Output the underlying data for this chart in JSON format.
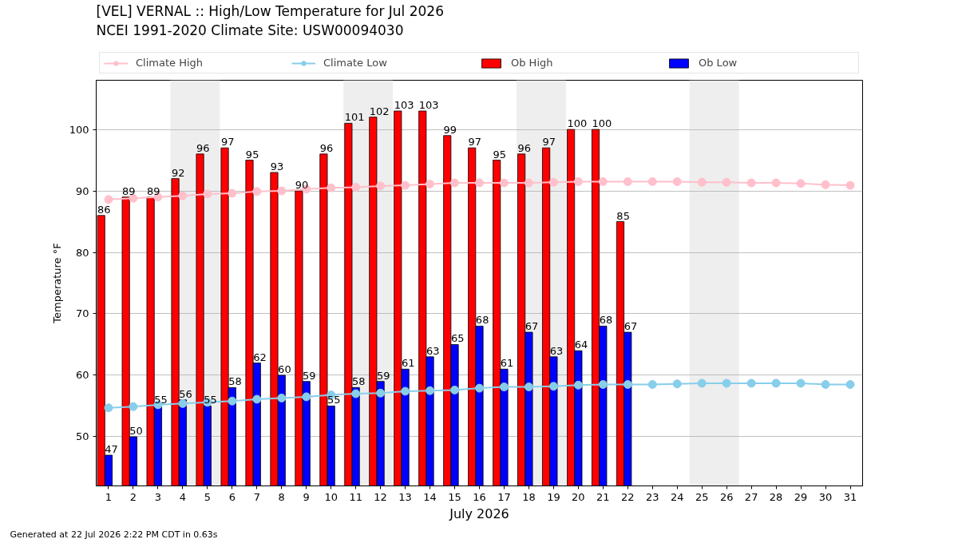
{
  "chart_data": {
    "type": "bar",
    "title": "[VEL] VERNAL :: High/Low Temperature for Jul 2026",
    "subtitle": "NCEI 1991-2020 Climate Site: USW00094030",
    "xlabel": "July 2026",
    "ylabel": "Temperature °F",
    "annotations": [
      "Generated at 22 Jul 2026 2:22 PM CDT in 0.63s"
    ],
    "x": [
      1,
      2,
      3,
      4,
      5,
      6,
      7,
      8,
      9,
      10,
      11,
      12,
      13,
      14,
      15,
      16,
      17,
      18,
      19,
      20,
      21,
      22,
      23,
      24,
      25,
      26,
      27,
      28,
      29,
      30,
      31
    ],
    "series": [
      {
        "name": "Climate High",
        "type": "line",
        "color": "#ffc0cb",
        "marker": "circle",
        "line_style": "solid",
        "values": [
          88.6,
          88.8,
          89.0,
          89.2,
          89.5,
          89.6,
          89.9,
          90.0,
          90.3,
          90.5,
          90.6,
          90.8,
          90.9,
          91.1,
          91.3,
          91.3,
          91.3,
          91.3,
          91.4,
          91.5,
          91.5,
          91.5,
          91.5,
          91.5,
          91.4,
          91.4,
          91.3,
          91.3,
          91.2,
          91.0,
          90.9
        ]
      },
      {
        "name": "Climate Low",
        "type": "line",
        "color": "#87ceeb",
        "marker": "circle",
        "line_style": "solid",
        "values": [
          54.7,
          54.9,
          55.2,
          55.4,
          55.6,
          55.8,
          56.1,
          56.3,
          56.5,
          56.8,
          57.0,
          57.1,
          57.4,
          57.5,
          57.6,
          57.9,
          58.1,
          58.1,
          58.2,
          58.4,
          58.5,
          58.5,
          58.5,
          58.6,
          58.7,
          58.7,
          58.7,
          58.7,
          58.7,
          58.5,
          58.5
        ]
      },
      {
        "name": "Ob High",
        "color": "#ff0000",
        "data_labels": true,
        "values": [
          86,
          89,
          89,
          92,
          96,
          97,
          95,
          93,
          90,
          96,
          101,
          102,
          103,
          103,
          99,
          97,
          95,
          96,
          97,
          100,
          100,
          85,
          null,
          null,
          null,
          null,
          null,
          null,
          null,
          null,
          null
        ]
      },
      {
        "name": "Ob Low",
        "color": "#0000ff",
        "data_labels": true,
        "values": [
          47,
          50,
          55,
          56,
          55,
          58,
          62,
          60,
          59,
          55,
          58,
          59,
          61,
          63,
          65,
          68,
          61,
          67,
          63,
          64,
          68,
          67,
          null,
          null,
          null,
          null,
          null,
          null,
          null,
          null,
          null
        ]
      }
    ],
    "bands": [
      {
        "axis": "x",
        "from": 3.5,
        "to": 5.5,
        "color": "#eeeeee"
      },
      {
        "axis": "x",
        "from": 10.5,
        "to": 12.5,
        "color": "#eeeeee"
      },
      {
        "axis": "x",
        "from": 17.5,
        "to": 19.5,
        "color": "#eeeeee"
      },
      {
        "axis": "x",
        "from": 24.5,
        "to": 26.5,
        "color": "#eeeeee"
      }
    ],
    "xlim": [
      0.5,
      31.5
    ],
    "xticks": [
      1,
      2,
      3,
      4,
      5,
      6,
      7,
      8,
      9,
      10,
      11,
      12,
      13,
      14,
      15,
      16,
      17,
      18,
      19,
      20,
      21,
      22,
      23,
      24,
      25,
      26,
      27,
      28,
      29,
      30,
      31
    ],
    "ylim": [
      42,
      108
    ],
    "yticks": [
      50,
      60,
      70,
      80,
      90,
      100
    ],
    "grid": "y",
    "legend": "top"
  }
}
